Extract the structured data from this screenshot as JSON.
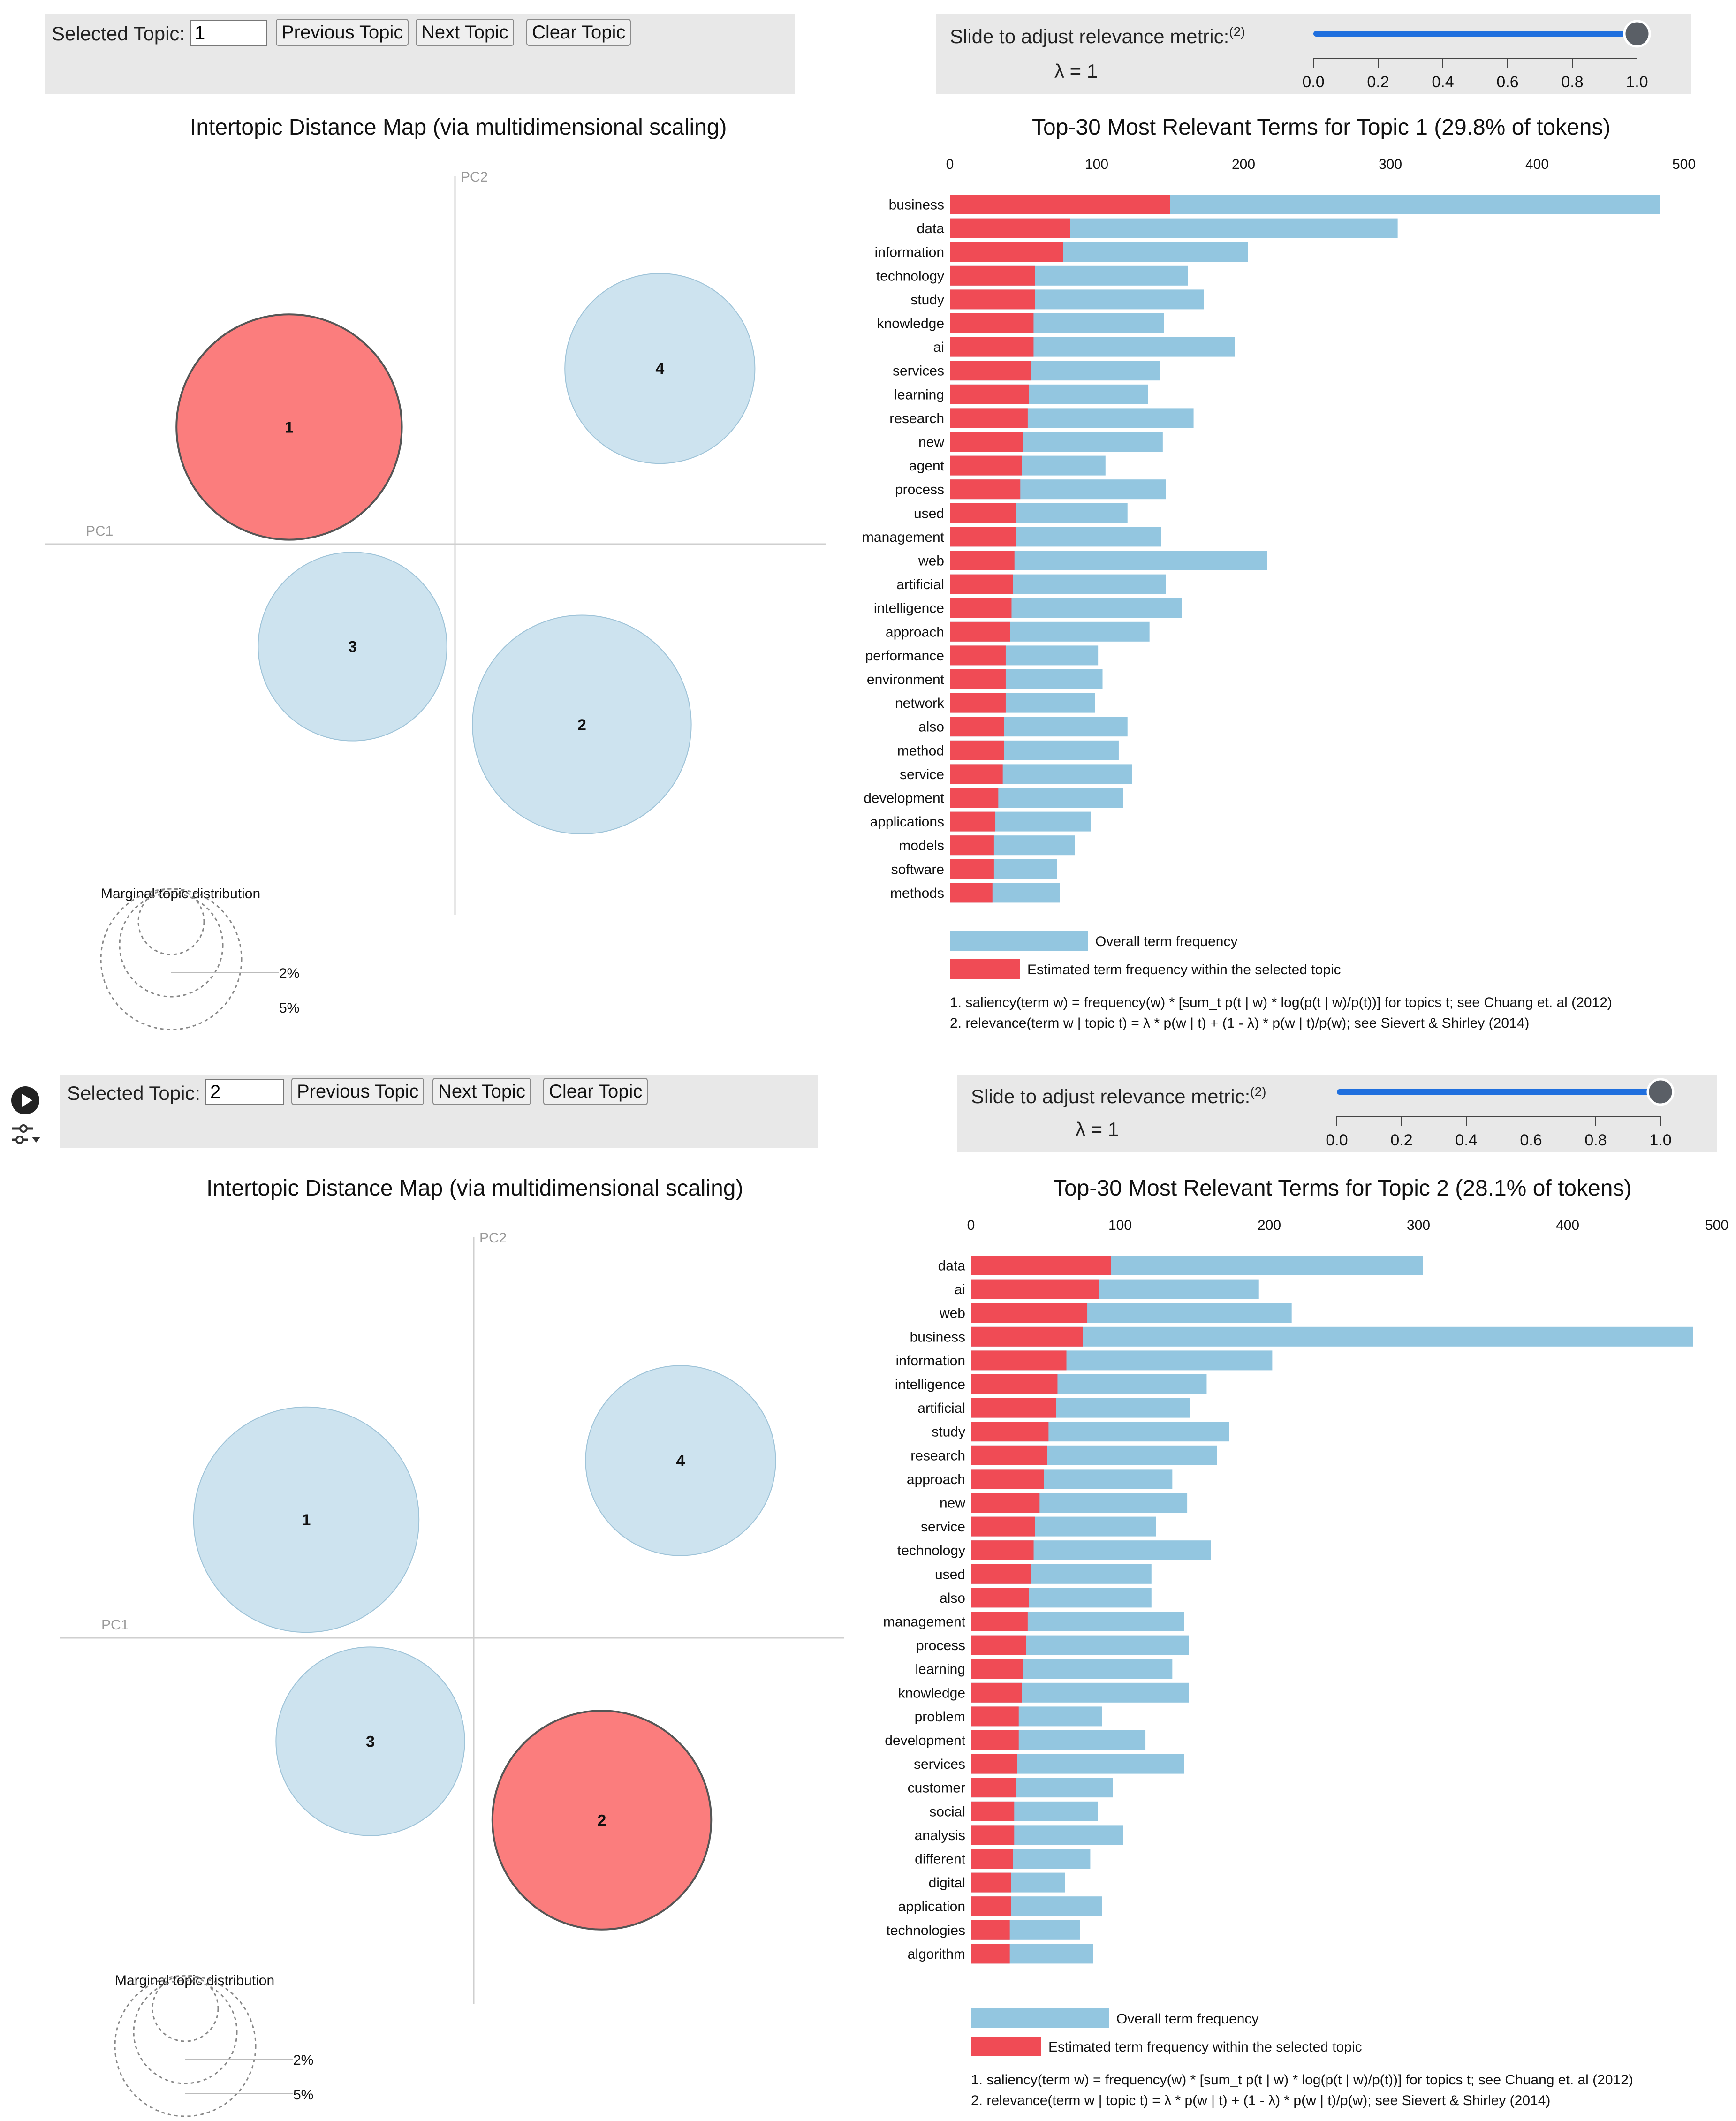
{
  "colors": {
    "red": "#f04b55",
    "red_selected_circle": "#fb7d7d",
    "blue_bar": "#93c6e0",
    "blue_circle": "#cde3ef",
    "slider_blue": "#1f6fde",
    "panel_grey": "#e8e8e8"
  },
  "icons": [
    "play-icon",
    "filter-sliders-icon"
  ],
  "panels": [
    {
      "controls": {
        "selected_topic_label": "Selected Topic:",
        "selected_topic_value": "1",
        "previous_label": "Previous Topic",
        "next_label": "Next Topic",
        "clear_label": "Clear Topic"
      },
      "slider": {
        "label": "Slide to adjust relevance metric:",
        "label_superscript": "(2)",
        "lambda_text": "λ = 1",
        "value": 1.0,
        "ticks": [
          "0.0",
          "0.2",
          "0.4",
          "0.6",
          "0.8",
          "1.0"
        ]
      },
      "map": {
        "title": "Intertopic Distance Map (via multidimensional scaling)",
        "pc1_label": "PC1",
        "pc2_label": "PC2",
        "selected_topic": 1,
        "topics": [
          {
            "id": "1",
            "pc1": -0.34,
            "pc2": 0.24,
            "size_pct": 29.8
          },
          {
            "id": "2",
            "pc1": 0.26,
            "pc2": -0.37,
            "size_pct": 28.1
          },
          {
            "id": "3",
            "pc1": -0.21,
            "pc2": -0.21,
            "size_pct": 20.9
          },
          {
            "id": "4",
            "pc1": 0.42,
            "pc2": 0.36,
            "size_pct": 21.2
          }
        ],
        "marginal_title": "Marginal topic distribution",
        "marginal_labels": [
          "2%",
          "5%"
        ]
      },
      "chart_data": {
        "type": "bar",
        "orientation": "horizontal",
        "title": "Top-30 Most Relevant Terms for Topic 1 (29.8% of tokens)",
        "xlim": [
          0,
          500
        ],
        "xticks": [
          "0",
          "100",
          "200",
          "300",
          "400",
          "500"
        ],
        "categories": [
          "business",
          "data",
          "information",
          "technology",
          "study",
          "knowledge",
          "ai",
          "services",
          "learning",
          "research",
          "new",
          "agent",
          "process",
          "used",
          "management",
          "web",
          "artificial",
          "intelligence",
          "approach",
          "performance",
          "environment",
          "network",
          "also",
          "method",
          "service",
          "development",
          "applications",
          "models",
          "software",
          "methods"
        ],
        "series": [
          {
            "name": "Overall term frequency",
            "values": [
              484,
              305,
              203,
              162,
              173,
              146,
              194,
              143,
              135,
              166,
              145,
              106,
              147,
              121,
              144,
              216,
              147,
              158,
              136,
              101,
              104,
              99,
              121,
              115,
              124,
              118,
              96,
              85,
              73,
              75
            ]
          },
          {
            "name": "Estimated term frequency within the selected topic",
            "values": [
              150,
              82,
              77,
              58,
              58,
              57,
              57,
              55,
              54,
              53,
              50,
              49,
              48,
              45,
              45,
              44,
              43,
              42,
              41,
              38,
              38,
              38,
              37,
              37,
              36,
              33,
              31,
              30,
              30,
              29
            ]
          }
        ],
        "legend": [
          "Overall term frequency",
          "Estimated term frequency within the selected topic"
        ],
        "notes": [
          "1. saliency(term w) = frequency(w) * [sum_t p(t | w) * log(p(t | w)/p(t))] for topics t; see Chuang et. al (2012)",
          "2. relevance(term w | topic t) = λ * p(w | t) + (1 - λ) * p(w | t)/p(w); see Sievert & Shirley (2014)"
        ]
      }
    },
    {
      "controls": {
        "selected_topic_label": "Selected Topic:",
        "selected_topic_value": "2",
        "previous_label": "Previous Topic",
        "next_label": "Next Topic",
        "clear_label": "Clear Topic"
      },
      "slider": {
        "label": "Slide to adjust relevance metric:",
        "label_superscript": "(2)",
        "lambda_text": "λ = 1",
        "value": 1.0,
        "ticks": [
          "0.0",
          "0.2",
          "0.4",
          "0.6",
          "0.8",
          "1.0"
        ]
      },
      "map": {
        "title": "Intertopic Distance Map (via multidimensional scaling)",
        "pc1_label": "PC1",
        "pc2_label": "PC2",
        "selected_topic": 2,
        "topics": [
          {
            "id": "1",
            "pc1": -0.34,
            "pc2": 0.24,
            "size_pct": 29.8
          },
          {
            "id": "2",
            "pc1": 0.26,
            "pc2": -0.37,
            "size_pct": 28.1
          },
          {
            "id": "3",
            "pc1": -0.21,
            "pc2": -0.21,
            "size_pct": 20.9
          },
          {
            "id": "4",
            "pc1": 0.42,
            "pc2": 0.36,
            "size_pct": 21.2
          }
        ],
        "marginal_title": "Marginal topic distribution",
        "marginal_labels": [
          "2%",
          "5%"
        ]
      },
      "chart_data": {
        "type": "bar",
        "orientation": "horizontal",
        "title": "Top-30 Most Relevant Terms for Topic 2 (28.1% of tokens)",
        "xlim": [
          0,
          500
        ],
        "xticks": [
          "0",
          "100",
          "200",
          "300",
          "400",
          "500"
        ],
        "categories": [
          "data",
          "ai",
          "web",
          "business",
          "information",
          "intelligence",
          "artificial",
          "study",
          "research",
          "approach",
          "new",
          "service",
          "technology",
          "used",
          "also",
          "management",
          "process",
          "learning",
          "knowledge",
          "problem",
          "development",
          "services",
          "customer",
          "social",
          "analysis",
          "different",
          "digital",
          "application",
          "technologies",
          "algorithm"
        ],
        "series": [
          {
            "name": "Overall term frequency",
            "values": [
              303,
              193,
              215,
              484,
              202,
              158,
              147,
              173,
              165,
              135,
              145,
              124,
              161,
              121,
              121,
              143,
              146,
              135,
              146,
              88,
              117,
              143,
              95,
              85,
              102,
              80,
              63,
              88,
              73,
              82
            ]
          },
          {
            "name": "Estimated term frequency within the selected topic",
            "values": [
              94,
              86,
              78,
              75,
              64,
              58,
              57,
              52,
              51,
              49,
              46,
              43,
              42,
              40,
              39,
              38,
              37,
              35,
              34,
              32,
              32,
              31,
              30,
              29,
              29,
              28,
              27,
              27,
              26,
              26
            ]
          }
        ],
        "legend": [
          "Overall term frequency",
          "Estimated term frequency within the selected topic"
        ],
        "notes": [
          "1. saliency(term w) = frequency(w) * [sum_t p(t | w) * log(p(t | w)/p(t))] for topics t; see Chuang et. al (2012)",
          "2. relevance(term w | topic t) = λ * p(w | t) + (1 - λ) * p(w | t)/p(w); see Sievert & Shirley (2014)"
        ]
      }
    }
  ]
}
